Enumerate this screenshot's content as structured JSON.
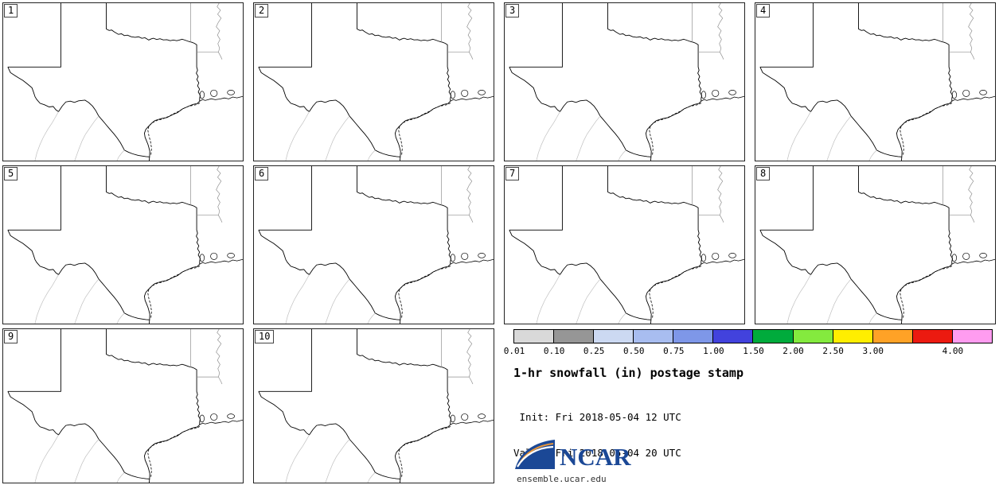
{
  "product": {
    "title": "1-hr snowfall (in) postage stamp",
    "init_line": " Init: Fri 2018-05-04 12 UTC",
    "valid_line": "Valid: Fri 2018-05-04 20 UTC",
    "logo_text": "NCAR",
    "site": "ensemble.ucar.edu"
  },
  "panels": [
    {
      "label": "1"
    },
    {
      "label": "2"
    },
    {
      "label": "3"
    },
    {
      "label": "4"
    },
    {
      "label": "5"
    },
    {
      "label": "6"
    },
    {
      "label": "7"
    },
    {
      "label": "8"
    },
    {
      "label": "9"
    },
    {
      "label": "10"
    }
  ],
  "colorbar": {
    "units": "in",
    "segments": [
      {
        "color": "#d9d9d9",
        "label": "0.01"
      },
      {
        "color": "#969696",
        "label": "0.10"
      },
      {
        "color": "#ccd9f2",
        "label": "0.25"
      },
      {
        "color": "#a8bdf0",
        "label": "0.50"
      },
      {
        "color": "#7e97e8",
        "label": "0.75"
      },
      {
        "color": "#4242dd",
        "label": "1.00"
      },
      {
        "color": "#00ab3c",
        "label": "1.50"
      },
      {
        "color": "#84ea3e",
        "label": "2.00"
      },
      {
        "color": "#ffee00",
        "label": "2.50"
      },
      {
        "color": "#ffa226",
        "label": "3.00"
      },
      {
        "color": "#ec1a10",
        "label": ""
      },
      {
        "color": "#ff9cf0",
        "label": "4.00"
      }
    ]
  },
  "map": {
    "region": "Texas",
    "outline_color": "#000000",
    "state_border_color": "#909090",
    "mexico_border_color": "#c0c0c0"
  }
}
